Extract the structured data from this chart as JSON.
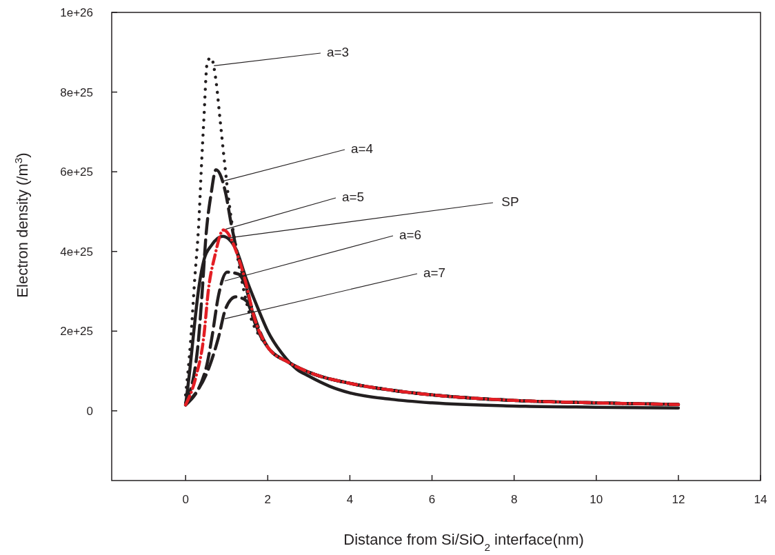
{
  "chart_data": {
    "type": "line",
    "xlabel": "Distance from Si/SiO$_{2}$ interface(nm)",
    "ylabel": "Electron density (/m$^{3}$)",
    "xlim": [
      -1.8,
      14
    ],
    "xticks": [
      0,
      2,
      4,
      6,
      8,
      10,
      12,
      14
    ],
    "ylim": [
      -1.75e+25,
      1e+26
    ],
    "yticks": [
      {
        "value": 0,
        "label": "0"
      },
      {
        "value": 2e+25,
        "label": "2e+25"
      },
      {
        "value": 4e+25,
        "label": "4e+25"
      },
      {
        "value": 6e+25,
        "label": "6e+25"
      },
      {
        "value": 8e+25,
        "label": "8e+25"
      },
      {
        "value": 1e+26,
        "label": "1e+26"
      }
    ],
    "grid": false,
    "series": [
      {
        "color": "#231f20",
        "line_style": "dotted",
        "x": [
          0,
          0.12,
          0.22,
          0.32,
          0.39,
          0.44,
          0.53,
          0.62,
          0.74,
          0.84,
          0.94,
          1.07,
          1.22,
          1.47,
          2,
          2.5,
          3,
          4,
          5,
          6,
          8,
          10,
          12
        ],
        "values": [
          4e+24,
          1.72e+25,
          3.28e+25,
          4.7e+25,
          6.24e+25,
          7.23e+25,
          8.77e+25,
          8.86e+25,
          8.28e+25,
          7.3e+25,
          6.31e+25,
          5.13e+25,
          4.14e+25,
          2.77e+25,
          1.6e+25,
          1.22e+25,
          9.7e+24,
          6.9e+24,
          5.2e+24,
          4e+24,
          2.6e+24,
          2e+24,
          1.6e+24
        ]
      },
      {
        "color": "#231f20",
        "line_style": "dashed",
        "x": [
          0,
          0.29,
          0.41,
          0.49,
          0.62,
          0.74,
          0.98,
          1.1,
          1.22,
          1.41,
          2,
          2.5,
          3,
          4,
          5,
          6,
          8,
          10,
          12
        ],
        "values": [
          2e+24,
          1.54e+25,
          3.08e+25,
          4.32e+25,
          5.44e+25,
          6.05e+25,
          5.44e+25,
          4.75e+25,
          4.14e+25,
          3.33e+25,
          1.6e+25,
          1.22e+25,
          9.7e+24,
          6.9e+24,
          5.2e+24,
          4e+24,
          2.6e+24,
          2e+24,
          1.6e+24
        ]
      },
      {
        "color": "#e31e24",
        "line_style": "dashed",
        "x": [
          0,
          0.25,
          0.44,
          0.56,
          0.71,
          0.92,
          1.29,
          1.47,
          1.64,
          2,
          2.5,
          3,
          4,
          5,
          6,
          8,
          10,
          12
        ],
        "values": [
          1.5e+24,
          8.5e+24,
          1.84e+25,
          3.08e+25,
          3.88e+25,
          4.54e+25,
          3.83e+25,
          3.2e+25,
          2.46e+25,
          1.6e+25,
          1.22e+25,
          9.7e+24,
          6.9e+24,
          5.2e+24,
          4e+24,
          2.6e+24,
          2e+24,
          1.6e+24
        ]
      },
      {
        "color": "#231f20",
        "line_style": "solid",
        "x": [
          0,
          0.1,
          0.2,
          0.32,
          0.45,
          0.62,
          0.9,
          1.22,
          1.47,
          1.75,
          2.01,
          2.37,
          2.7,
          3,
          3.5,
          4,
          5,
          6,
          8,
          10,
          12
        ],
        "values": [
          1.5e+24,
          1e+25,
          2e+25,
          3.08e+25,
          3.8e+25,
          4.14e+25,
          4.38e+25,
          4.07e+25,
          3.33e+25,
          2.6e+25,
          1.98e+25,
          1.41e+25,
          1.05e+25,
          8.7e+24,
          6.2e+24,
          4.5e+24,
          2.9e+24,
          2e+24,
          1.2e+24,
          9e+23,
          7e+23
        ]
      },
      {
        "color": "#231f20",
        "line_style": "dashed",
        "x": [
          0,
          0.49,
          0.64,
          0.8,
          1.01,
          1.29,
          1.47,
          1.71,
          2,
          2.5,
          3,
          4,
          5,
          6,
          8,
          10,
          12
        ],
        "values": [
          1.5e+24,
          1.04e+25,
          1.84e+25,
          2.89e+25,
          3.48e+25,
          3.43e+25,
          3.1e+25,
          2.15e+25,
          1.6e+25,
          1.22e+25,
          9.7e+24,
          6.9e+24,
          5.2e+24,
          4e+24,
          2.6e+24,
          2e+24,
          1.6e+24
        ]
      },
      {
        "color": "#231f20",
        "line_style": "dashed",
        "x": [
          0,
          0.62,
          0.8,
          0.98,
          1.22,
          1.47,
          1.71,
          2,
          2.5,
          3,
          4,
          5,
          6,
          8,
          10,
          12
        ],
        "values": [
          1.5e+24,
          1.23e+25,
          1.84e+25,
          2.58e+25,
          2.86e+25,
          2.77e+25,
          2.15e+25,
          1.6e+25,
          1.22e+25,
          9.7e+24,
          6.9e+24,
          5.2e+24,
          4e+24,
          2.6e+24,
          2e+24,
          1.6e+24
        ]
      }
    ],
    "annotations": [
      {
        "text": "a=3",
        "x": 0.69,
        "y": 8.66e+25
      },
      {
        "text": "a=4",
        "x": 0.93,
        "y": 5.77e+25
      },
      {
        "text": "a=5",
        "x": 0.98,
        "y": 4.56e+25
      },
      {
        "text": "SP",
        "x": 0.98,
        "y": 4.33e+25
      },
      {
        "text": "a=6",
        "x": 0.95,
        "y": 3.26e+25
      },
      {
        "text": "a=7",
        "x": 0.95,
        "y": 2.31e+25
      }
    ]
  }
}
